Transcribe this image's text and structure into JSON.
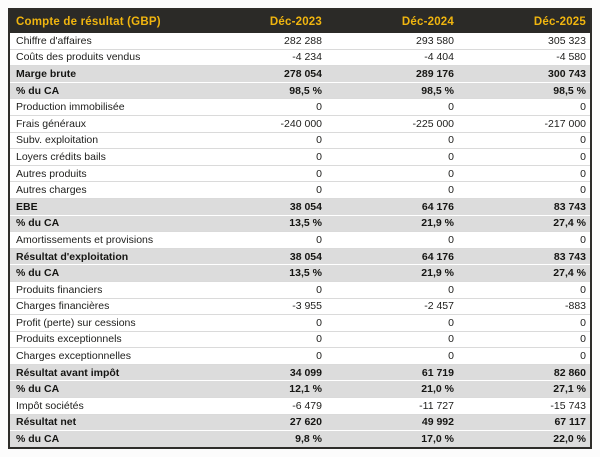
{
  "table": {
    "header": {
      "title": "Compte de résultat (GBP)",
      "columns": [
        "Déc-2023",
        "Déc-2024",
        "Déc-2025"
      ]
    },
    "rows": [
      {
        "label": "Chiffre d'affaires",
        "values": [
          "282 288",
          "293 580",
          "305 323"
        ],
        "emphasis": false
      },
      {
        "label": "Coûts des produits vendus",
        "values": [
          "-4 234",
          "-4 404",
          "-4 580"
        ],
        "emphasis": false
      },
      {
        "label": "Marge brute",
        "values": [
          "278 054",
          "289 176",
          "300 743"
        ],
        "emphasis": true
      },
      {
        "label": "% du CA",
        "values": [
          "98,5 %",
          "98,5 %",
          "98,5 %"
        ],
        "emphasis": true
      },
      {
        "label": "Production immobilisée",
        "values": [
          "0",
          "0",
          "0"
        ],
        "emphasis": false
      },
      {
        "label": "Frais généraux",
        "values": [
          "-240 000",
          "-225 000",
          "-217 000"
        ],
        "emphasis": false
      },
      {
        "label": "Subv. exploitation",
        "values": [
          "0",
          "0",
          "0"
        ],
        "emphasis": false
      },
      {
        "label": "Loyers crédits bails",
        "values": [
          "0",
          "0",
          "0"
        ],
        "emphasis": false
      },
      {
        "label": "Autres produits",
        "values": [
          "0",
          "0",
          "0"
        ],
        "emphasis": false
      },
      {
        "label": "Autres charges",
        "values": [
          "0",
          "0",
          "0"
        ],
        "emphasis": false
      },
      {
        "label": "EBE",
        "values": [
          "38 054",
          "64 176",
          "83 743"
        ],
        "emphasis": true
      },
      {
        "label": "% du CA",
        "values": [
          "13,5 %",
          "21,9 %",
          "27,4 %"
        ],
        "emphasis": true
      },
      {
        "label": "Amortissements et provisions",
        "values": [
          "0",
          "0",
          "0"
        ],
        "emphasis": false
      },
      {
        "label": "Résultat d'exploitation",
        "values": [
          "38 054",
          "64 176",
          "83 743"
        ],
        "emphasis": true
      },
      {
        "label": "% du CA",
        "values": [
          "13,5 %",
          "21,9 %",
          "27,4 %"
        ],
        "emphasis": true
      },
      {
        "label": "Produits financiers",
        "values": [
          "0",
          "0",
          "0"
        ],
        "emphasis": false
      },
      {
        "label": "Charges financières",
        "values": [
          "-3 955",
          "-2 457",
          "-883"
        ],
        "emphasis": false
      },
      {
        "label": "Profit (perte) sur cessions",
        "values": [
          "0",
          "0",
          "0"
        ],
        "emphasis": false
      },
      {
        "label": "Produits exceptionnels",
        "values": [
          "0",
          "0",
          "0"
        ],
        "emphasis": false
      },
      {
        "label": "Charges exceptionnelles",
        "values": [
          "0",
          "0",
          "0"
        ],
        "emphasis": false
      },
      {
        "label": "Résultat avant impôt",
        "values": [
          "34 099",
          "61 719",
          "82 860"
        ],
        "emphasis": true
      },
      {
        "label": "% du CA",
        "values": [
          "12,1 %",
          "21,0 %",
          "27,1 %"
        ],
        "emphasis": true
      },
      {
        "label": "Impôt sociétés",
        "values": [
          "-6 479",
          "-11 727",
          "-15 743"
        ],
        "emphasis": false
      },
      {
        "label": "Résultat net",
        "values": [
          "27 620",
          "49 992",
          "67 117"
        ],
        "emphasis": true
      },
      {
        "label": "% du CA",
        "values": [
          "9,8 %",
          "17,0 %",
          "22,0 %"
        ],
        "emphasis": true
      }
    ]
  },
  "colors": {
    "header_bg": "#2b2a27",
    "header_text": "#f0b50f",
    "emphasis_row_bg": "#dcdcdc",
    "table_border": "#2e2d2a",
    "row_divider": "#dadada"
  }
}
